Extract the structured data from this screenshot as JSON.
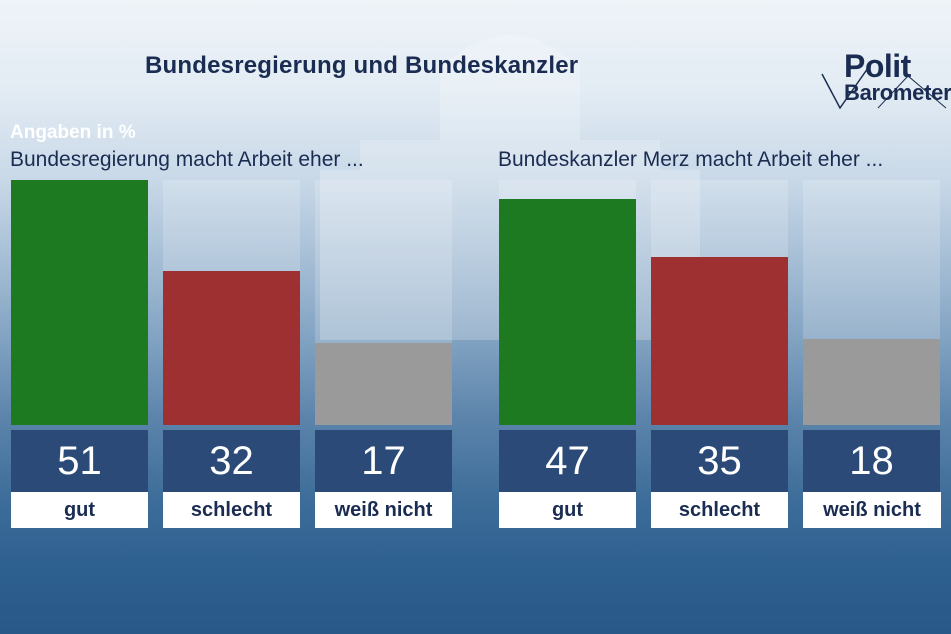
{
  "title": "Bundesregierung und Bundeskanzler",
  "logo": {
    "line1": "Polit",
    "line2": "Barometer"
  },
  "unit_label": "Angaben in %",
  "colors": {
    "gut": "#1d7a20",
    "schlecht": "#9e3031",
    "weiss_nicht": "#9a9a9a",
    "value_bg": "#2b4a78"
  },
  "chart_data": [
    {
      "type": "bar",
      "title": "Bundesregierung macht Arbeit eher ...",
      "categories": [
        "gut",
        "schlecht",
        "weiß nicht"
      ],
      "values": [
        51,
        32,
        17
      ],
      "ylabel": "Angaben in %",
      "ylim": [
        0,
        51
      ]
    },
    {
      "type": "bar",
      "title": "Bundeskanzler Merz macht Arbeit eher ...",
      "categories": [
        "gut",
        "schlecht",
        "weiß nicht"
      ],
      "values": [
        47,
        35,
        18
      ],
      "ylabel": "Angaben in %",
      "ylim": [
        0,
        51
      ]
    }
  ]
}
